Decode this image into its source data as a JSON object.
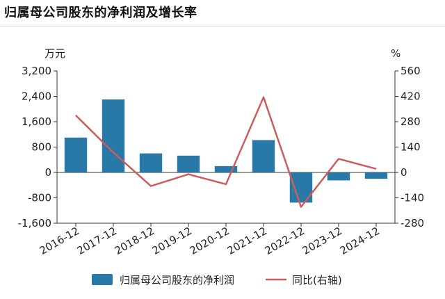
{
  "title": "归属母公司股东的净利润及增长率",
  "chart_data": {
    "type": "bar",
    "categories": [
      "2016-12",
      "2017-12",
      "2018-12",
      "2019-12",
      "2020-12",
      "2021-12",
      "2022-12",
      "2023-12",
      "2024-12"
    ],
    "series": [
      {
        "name": "归属母公司股东的净利润",
        "type": "bar",
        "axis": "left",
        "values": [
          1100,
          2300,
          600,
          530,
          200,
          1020,
          -950,
          -250,
          -200
        ]
      },
      {
        "name": "同比(右轴)",
        "type": "line",
        "axis": "right",
        "values": [
          315,
          110,
          -75,
          -10,
          -65,
          415,
          -190,
          75,
          20
        ]
      }
    ],
    "left_axis": {
      "unit": "万元",
      "ylim": [
        -1600,
        3200
      ],
      "ticks": [
        "3,200",
        "2,400",
        "1,600",
        "800",
        "0",
        "-800",
        "-1,600"
      ],
      "tick_values": [
        3200,
        2400,
        1600,
        800,
        0,
        -800,
        -1600
      ]
    },
    "right_axis": {
      "unit": "%",
      "ylim": [
        -280,
        560
      ],
      "ticks": [
        "560",
        "420",
        "280",
        "140",
        "0",
        "-140",
        "-280"
      ],
      "tick_values": [
        560,
        420,
        280,
        140,
        0,
        -140,
        -280
      ]
    },
    "colors": {
      "bar": "#2878a8",
      "line": "#cd5c5c"
    },
    "legend_position": "bottom",
    "grid": false
  }
}
